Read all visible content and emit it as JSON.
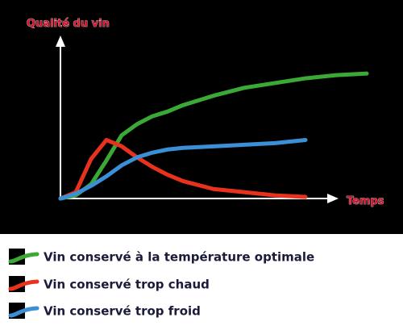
{
  "chart_data": {
    "type": "line",
    "ylabel": "Qualité du vin",
    "xlabel": "Temps",
    "x": [
      0,
      5,
      10,
      15,
      20,
      25,
      30,
      35,
      40,
      50,
      60,
      70,
      80,
      90,
      100
    ],
    "xlim": [
      0,
      100
    ],
    "ylim": [
      0,
      100
    ],
    "series": [
      {
        "name": "Vin conservé à la température optimale",
        "color": "#3aa935",
        "values": [
          0,
          2,
          9,
          24,
          40,
          47,
          52,
          55,
          59,
          65,
          70,
          73,
          76,
          78,
          79
        ]
      },
      {
        "name": "Vin conservé trop chaud",
        "color": "#e8321e",
        "values": [
          0,
          4,
          25,
          37,
          33,
          26,
          20,
          15,
          11,
          6,
          4,
          2,
          1,
          null,
          null
        ]
      },
      {
        "name": "Vin conservé trop froid",
        "color": "#3a8fd6",
        "values": [
          0,
          3,
          8,
          14,
          21,
          26,
          29,
          31,
          32,
          33,
          34,
          35,
          37,
          null,
          null
        ]
      }
    ]
  }
}
